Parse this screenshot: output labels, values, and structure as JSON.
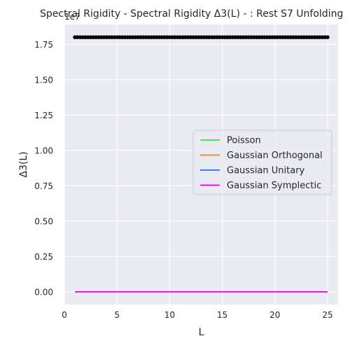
{
  "chart_data": {
    "type": "scatter",
    "title": "Spectral Rigidity - Spectral Rigidity Δ3(L) - : Rest S7 Unfolding",
    "xlabel": "L",
    "ylabel": "Δ3(L)",
    "offset_label": "1e7",
    "xlim": [
      0,
      26
    ],
    "ylim": [
      -0.09,
      1.89
    ],
    "x_ticks": [
      0,
      5,
      10,
      15,
      20,
      25
    ],
    "y_ticks": [
      0.0,
      0.25,
      0.5,
      0.75,
      1.0,
      1.25,
      1.5,
      1.75
    ],
    "x_tick_labels": [
      "0",
      "5",
      "10",
      "15",
      "20",
      "25"
    ],
    "y_tick_labels": [
      "0.00",
      "0.25",
      "0.50",
      "0.75",
      "1.00",
      "1.25",
      "1.50",
      "1.75"
    ],
    "grid": true,
    "background": "#eaeaf2",
    "legend_position": "center-right",
    "observed": {
      "color": "#000000",
      "x_start": 1,
      "x_end": 25,
      "x_step": 0.25,
      "y": 1.8
    },
    "series": [
      {
        "name": "Poisson",
        "color": "#22ee55",
        "x": [
          1,
          25
        ],
        "y": [
          0,
          0
        ]
      },
      {
        "name": "Gaussian Orthogonal",
        "color": "#ff7f0e",
        "x": [
          1,
          25
        ],
        "y": [
          0,
          0
        ]
      },
      {
        "name": "Gaussian Unitary",
        "color": "#1f6fff",
        "x": [
          1,
          25
        ],
        "y": [
          0,
          0
        ]
      },
      {
        "name": "Gaussian Symplectic",
        "color": "#ee00ee",
        "x": [
          1,
          25
        ],
        "y": [
          0,
          0
        ]
      }
    ]
  }
}
